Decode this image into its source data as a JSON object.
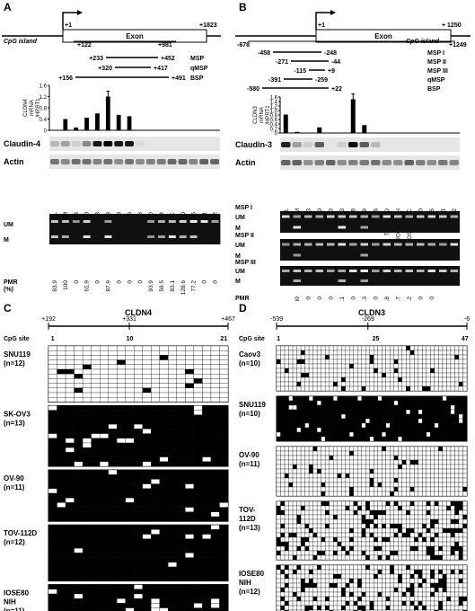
{
  "panels": {
    "A": {
      "letter": "A",
      "gene_coords": {
        "end": "+1823",
        "tss": "+1",
        "cpg_start": "+122",
        "cpg_end": "+981"
      },
      "exon_label": "Exon",
      "cpg_label": "CpG island",
      "primers": [
        {
          "start": "+233",
          "end": "+452",
          "name": "MSP"
        },
        {
          "start": "+320",
          "end": "+417",
          "name": "qMSP"
        },
        {
          "start": "+156",
          "end": "+491",
          "name": "BSP"
        }
      ],
      "chart_data": {
        "type": "bar",
        "ylabel": "CLDN4 mRNA /HPRT1",
        "ylim": [
          0,
          1.6
        ],
        "yticks": [
          "0",
          "0.4",
          "0.8",
          "1.2",
          "1.6"
        ],
        "values": [
          0.0,
          0.4,
          0.1,
          0.45,
          0.6,
          1.2,
          0.55,
          0.5,
          0.0,
          0.0,
          0.0,
          0.0,
          0.0,
          0.0,
          0.0,
          0.0
        ]
      },
      "blot_labels": [
        "Claudin-4",
        "Actin"
      ],
      "lanes": [
        "h.L",
        "h.L.M",
        "Caov3",
        "OV-90",
        "OVCAR3",
        "SK-OV3",
        "SNU8",
        "SNU119",
        "SW626",
        "TOV-112D",
        "IOSE80NIH",
        "IOSE80UBC",
        "IOSE120",
        "IOSE385",
        "NOSE 1",
        "NOSE 2"
      ],
      "gel_labels": [
        "UM",
        "M"
      ],
      "pmr_label": "PMR (%)",
      "pmr_values": [
        "83.9",
        "100",
        "0",
        "61.9",
        "0",
        "87.9",
        "0",
        "0",
        "0",
        "93.9",
        "59.5",
        "83.1",
        "128.6",
        "77.2",
        "0",
        "0"
      ]
    },
    "B": {
      "letter": "B",
      "gene_coords": {
        "end": "+ 1250",
        "tss": "+1",
        "cpg_start": "-678",
        "cpg_end": "+1249"
      },
      "exon_label": "Exon",
      "cpg_label": "CpG island",
      "primers": [
        {
          "start": "-458",
          "end": "-248",
          "name": "MSP I"
        },
        {
          "start": "-271",
          "end": "-44",
          "name": "MSP II"
        },
        {
          "start": "-115",
          "end": "+9",
          "name": "MSP III"
        },
        {
          "start": "-391",
          "end": "-259",
          "name": "qMSP"
        },
        {
          "start": "-580",
          "end": "+22",
          "name": "BSP"
        }
      ],
      "chart_data": {
        "type": "bar",
        "ylabel": "CLDN3 mRNA /HPRT1",
        "ylim": [
          0,
          1.6
        ],
        "yticks": [
          "0",
          "0.2",
          "0.4",
          "0.6",
          "0.8",
          "1.0",
          "1.2",
          "1.4",
          "1.6"
        ],
        "values": [
          0.82,
          0.05,
          0.0,
          0.25,
          0.0,
          0.02,
          1.5,
          0.35,
          0.02,
          0.0,
          0.0,
          0.0,
          0.0,
          0.0,
          0.0,
          0.0
        ]
      },
      "blot_labels": [
        "Claudin-3",
        "Actin"
      ],
      "lanes": [
        "h.L",
        "h.L.M",
        "Caov3",
        "OV-90",
        "OVCAR3",
        "SK-OV3",
        "SNU8",
        "SNU119",
        "SW626",
        "TOV-112D",
        "IOSE80NIH",
        "IOSE80UBC",
        "IOSE120",
        "IOSE385",
        "NOSE 1",
        "NOSE 2"
      ],
      "msp_sets": [
        "MSP I",
        "MSP II",
        "MSP III"
      ],
      "gel_labels": [
        "UM",
        "M"
      ],
      "pmr_label": "PMR (%)",
      "pmr_values": [
        "",
        "100",
        "0",
        "0",
        "0",
        "22.1",
        "0",
        "63.3",
        "0",
        "1.8",
        "3.7",
        "3.2",
        "0",
        "0",
        "",
        ""
      ]
    },
    "C": {
      "letter": "C",
      "title": "CLDN4",
      "coords": [
        "+192",
        "+331",
        "+467"
      ],
      "cpg_label": "CpG site",
      "cpg_ticks": [
        "1",
        "10",
        "21"
      ],
      "cols": 21,
      "samples": [
        {
          "name": "SNU119",
          "n": "(n=12)",
          "rows": 12,
          "meth": "low"
        },
        {
          "name": "SK-OV3",
          "n": "(n=13)",
          "rows": 13,
          "meth": "high"
        },
        {
          "name": "OV-90",
          "n": "(n=11)",
          "rows": 11,
          "meth": "high"
        },
        {
          "name": "TOV-112D",
          "n": "(n=12)",
          "rows": 12,
          "meth": "high"
        },
        {
          "name": "IOSE80 NIH",
          "n": "(n=11)",
          "rows": 11,
          "meth": "high"
        }
      ]
    },
    "D": {
      "letter": "D",
      "title": "CLDN3",
      "coords": [
        "-539",
        "-269",
        "-6"
      ],
      "cpg_label": "CpG site",
      "cpg_ticks": [
        "1",
        "25",
        "47"
      ],
      "cols": 47,
      "samples": [
        {
          "name": "Caov3",
          "n": "(n=10)",
          "rows": 10,
          "meth": "low"
        },
        {
          "name": "SNU119",
          "n": "(n=10)",
          "rows": 10,
          "meth": "high"
        },
        {
          "name": "OV-90",
          "n": "(n=11)",
          "rows": 11,
          "meth": "low"
        },
        {
          "name": "TOV- 112D",
          "n": "(n=13)",
          "rows": 13,
          "meth": "medium"
        },
        {
          "name": "IOSE80 NIH",
          "n": "(n=12)",
          "rows": 12,
          "meth": "medium"
        }
      ]
    }
  }
}
